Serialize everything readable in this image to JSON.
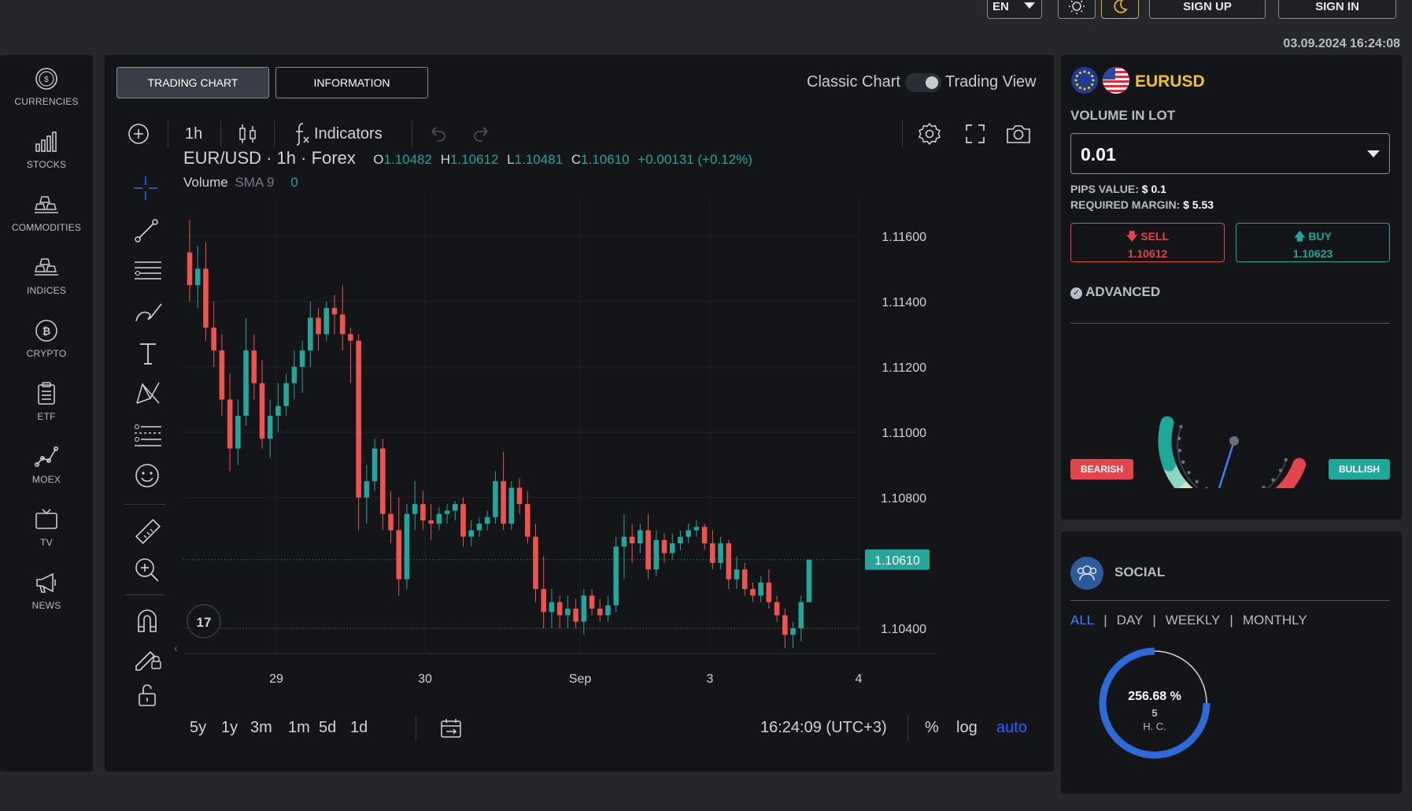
{
  "topbar": {
    "language": "EN",
    "sign_up": "SIGN UP",
    "sign_in": "SIGN IN",
    "datetime": "03.09.2024 16:24:08"
  },
  "sidebar": {
    "items": [
      {
        "label": "CURRENCIES",
        "icon": "dollar-coin-icon"
      },
      {
        "label": "STOCKS",
        "icon": "bar-chart-icon"
      },
      {
        "label": "COMMODITIES",
        "icon": "gold-bars-icon"
      },
      {
        "label": "INDICES",
        "icon": "stacked-bars-icon"
      },
      {
        "label": "CRYPTO",
        "icon": "bitcoin-icon"
      },
      {
        "label": "ETF",
        "icon": "clipboard-icon"
      },
      {
        "label": "MOEX",
        "icon": "line-graph-icon"
      },
      {
        "label": "TV",
        "icon": "tv-icon"
      },
      {
        "label": "NEWS",
        "icon": "megaphone-icon"
      }
    ]
  },
  "chart_panel": {
    "tab_trading": "TRADING CHART",
    "tab_info": "INFORMATION",
    "classic_chart": "Classic Chart",
    "trading_view": "Trading View",
    "interval": "1h",
    "indicators": "Indicators",
    "symbol_title": "EUR/USD · 1h · Forex",
    "ohlc": {
      "o_label": "O",
      "o": "1.10482",
      "h_label": "H",
      "h": "1.10612",
      "l_label": "L",
      "l": "1.10481",
      "c_label": "C",
      "c": "1.10610",
      "change": "+0.00131 (+0.12%)"
    },
    "volume_label": "Volume",
    "volume_sma": "SMA 9",
    "volume_value": "0",
    "price_ticks": [
      "1.11600",
      "1.11400",
      "1.11200",
      "1.11000",
      "1.10800",
      "1.10400"
    ],
    "last_price": "1.10610",
    "time_ticks": [
      "29",
      "30",
      "Sep",
      "3",
      "4"
    ],
    "ranges": [
      "5y",
      "1y",
      "3m",
      "1m",
      "5d",
      "1d"
    ],
    "clock": "16:24:09 (UTC+3)",
    "percent": "%",
    "log": "log",
    "auto": "auto",
    "colors": {
      "up": "#26a69a",
      "down": "#ef5350",
      "accent": "#2962ff"
    }
  },
  "chart_data": {
    "type": "candlestick",
    "title": "EUR/USD · 1h · Forex",
    "ylim": [
      1.1033,
      1.1172
    ],
    "x_ticks": [
      "29",
      "30",
      "Sep",
      "3",
      "4"
    ],
    "candles": [
      [
        1.1155,
        1.1165,
        1.114,
        1.1145
      ],
      [
        1.1145,
        1.1157,
        1.1138,
        1.115
      ],
      [
        1.115,
        1.1158,
        1.1128,
        1.1132
      ],
      [
        1.1132,
        1.114,
        1.112,
        1.1125
      ],
      [
        1.1125,
        1.113,
        1.1105,
        1.111
      ],
      [
        1.111,
        1.1118,
        1.1088,
        1.1095
      ],
      [
        1.1095,
        1.111,
        1.109,
        1.1105
      ],
      [
        1.1105,
        1.1135,
        1.1102,
        1.1125
      ],
      [
        1.1125,
        1.113,
        1.111,
        1.1115
      ],
      [
        1.1115,
        1.1122,
        1.1095,
        1.1098
      ],
      [
        1.1098,
        1.111,
        1.1092,
        1.1105
      ],
      [
        1.1105,
        1.1115,
        1.11,
        1.1108
      ],
      [
        1.1108,
        1.1118,
        1.1105,
        1.1115
      ],
      [
        1.1115,
        1.1125,
        1.111,
        1.112
      ],
      [
        1.112,
        1.1128,
        1.1112,
        1.1125
      ],
      [
        1.1125,
        1.114,
        1.112,
        1.1135
      ],
      [
        1.1135,
        1.1138,
        1.1125,
        1.113
      ],
      [
        1.113,
        1.114,
        1.1128,
        1.1138
      ],
      [
        1.1138,
        1.1142,
        1.113,
        1.1136
      ],
      [
        1.1136,
        1.1145,
        1.1125,
        1.113
      ],
      [
        1.113,
        1.1132,
        1.1115,
        1.1128
      ],
      [
        1.1128,
        1.113,
        1.107,
        1.108
      ],
      [
        1.108,
        1.109,
        1.1072,
        1.1085
      ],
      [
        1.1085,
        1.1098,
        1.1082,
        1.1095
      ],
      [
        1.1095,
        1.1098,
        1.107,
        1.1075
      ],
      [
        1.1075,
        1.1082,
        1.1066,
        1.107
      ],
      [
        1.107,
        1.108,
        1.105,
        1.1055
      ],
      [
        1.1055,
        1.1078,
        1.1052,
        1.1075
      ],
      [
        1.1075,
        1.1085,
        1.107,
        1.1078
      ],
      [
        1.1078,
        1.1082,
        1.107,
        1.1073
      ],
      [
        1.1073,
        1.1078,
        1.1067,
        1.1072
      ],
      [
        1.1072,
        1.1077,
        1.107,
        1.1075
      ],
      [
        1.1075,
        1.1078,
        1.1072,
        1.1076
      ],
      [
        1.1076,
        1.1079,
        1.1073,
        1.1078
      ],
      [
        1.1078,
        1.108,
        1.1065,
        1.1068
      ],
      [
        1.1068,
        1.1073,
        1.1065,
        1.107
      ],
      [
        1.107,
        1.1074,
        1.1068,
        1.1072
      ],
      [
        1.1072,
        1.1076,
        1.107,
        1.1074
      ],
      [
        1.1074,
        1.1088,
        1.1072,
        1.1085
      ],
      [
        1.1085,
        1.1094,
        1.107,
        1.1072
      ],
      [
        1.1072,
        1.1085,
        1.107,
        1.1083
      ],
      [
        1.1083,
        1.1086,
        1.1075,
        1.1078
      ],
      [
        1.1078,
        1.1082,
        1.1066,
        1.1068
      ],
      [
        1.1068,
        1.1072,
        1.1048,
        1.1052
      ],
      [
        1.1052,
        1.1062,
        1.104,
        1.1045
      ],
      [
        1.1045,
        1.1052,
        1.104,
        1.1048
      ],
      [
        1.1048,
        1.105,
        1.104,
        1.1044
      ],
      [
        1.1044,
        1.105,
        1.104,
        1.1046
      ],
      [
        1.1046,
        1.1049,
        1.104,
        1.1042
      ],
      [
        1.1042,
        1.1052,
        1.1038,
        1.105
      ],
      [
        1.105,
        1.1052,
        1.1044,
        1.1046
      ],
      [
        1.1046,
        1.1049,
        1.1042,
        1.1044
      ],
      [
        1.1044,
        1.105,
        1.1042,
        1.1047
      ],
      [
        1.1047,
        1.1068,
        1.1045,
        1.1065
      ],
      [
        1.1065,
        1.1075,
        1.1055,
        1.1068
      ],
      [
        1.1068,
        1.1072,
        1.106,
        1.1066
      ],
      [
        1.1066,
        1.1072,
        1.1063,
        1.107
      ],
      [
        1.107,
        1.1075,
        1.1055,
        1.1058
      ],
      [
        1.1058,
        1.107,
        1.1056,
        1.1067
      ],
      [
        1.1067,
        1.1069,
        1.106,
        1.1063
      ],
      [
        1.1063,
        1.1069,
        1.1061,
        1.1066
      ],
      [
        1.1066,
        1.107,
        1.1064,
        1.1068
      ],
      [
        1.1068,
        1.1072,
        1.1066,
        1.107
      ],
      [
        1.107,
        1.1073,
        1.1068,
        1.1071
      ],
      [
        1.1071,
        1.1072,
        1.1064,
        1.1066
      ],
      [
        1.1066,
        1.107,
        1.1058,
        1.106
      ],
      [
        1.106,
        1.1068,
        1.1058,
        1.1066
      ],
      [
        1.1066,
        1.1067,
        1.1052,
        1.1055
      ],
      [
        1.1055,
        1.1062,
        1.1052,
        1.1058
      ],
      [
        1.1058,
        1.106,
        1.105,
        1.1052
      ],
      [
        1.1052,
        1.1054,
        1.1048,
        1.105
      ],
      [
        1.105,
        1.1056,
        1.1048,
        1.1054
      ],
      [
        1.1054,
        1.1058,
        1.1046,
        1.1048
      ],
      [
        1.1048,
        1.105,
        1.1042,
        1.1044
      ],
      [
        1.1044,
        1.1046,
        1.1034,
        1.1038
      ],
      [
        1.1038,
        1.1042,
        1.1034,
        1.104
      ],
      [
        1.104,
        1.105,
        1.1036,
        1.1048
      ],
      [
        1.1048,
        1.1061,
        1.1048,
        1.1061
      ]
    ]
  },
  "order": {
    "pair": "EURUSD",
    "volume_label": "VOLUME IN LOT",
    "volume_value": "0.01",
    "pips_label": "PIPS VALUE:",
    "pips_value": "$ 0.1",
    "margin_label": "REQUIRED MARGIN:",
    "margin_value": "$ 5.53",
    "sell_label": "SELL",
    "sell_price": "1.10612",
    "buy_label": "BUY",
    "buy_price": "1.10623",
    "advanced": "ADVANCED",
    "bearish": "BEARISH",
    "bullish": "BULLISH",
    "gauge_value": 0.5
  },
  "social": {
    "title": "SOCIAL",
    "filters": [
      "ALL",
      "DAY",
      "WEEKLY",
      "MONTHLY"
    ],
    "percent": "256.68 %",
    "count": "5",
    "unit": "Н. С.",
    "ring_fraction": 0.75
  }
}
